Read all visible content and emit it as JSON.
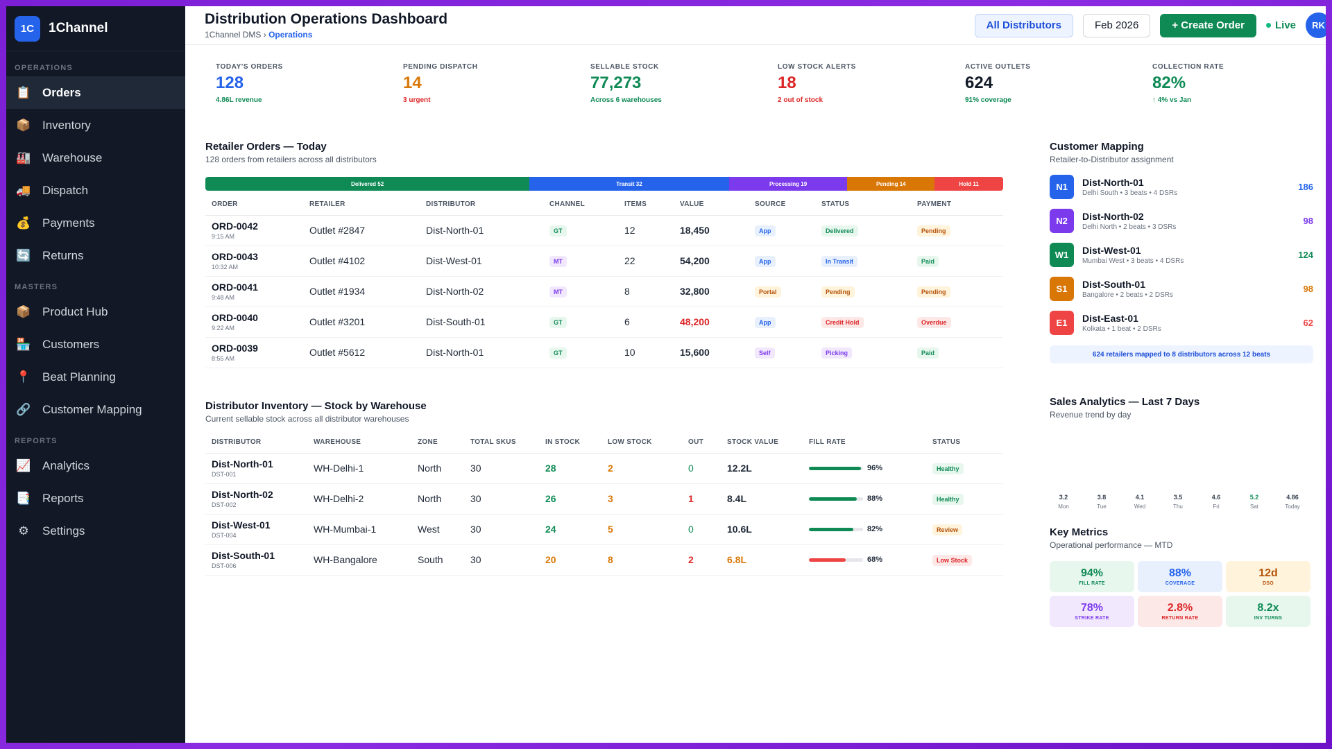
{
  "brand": {
    "logo_text": "1C",
    "name": "1Channel"
  },
  "sidebar": {
    "sections": [
      {
        "title": "OPERATIONS",
        "items": [
          {
            "label": "Orders",
            "icon": "clipboard-icon",
            "glyph": "📋",
            "active": true
          },
          {
            "label": "Inventory",
            "icon": "box-icon",
            "glyph": "📦"
          },
          {
            "label": "Warehouse",
            "icon": "factory-icon",
            "glyph": "🏭"
          },
          {
            "label": "Dispatch",
            "icon": "truck-icon",
            "glyph": "🚚"
          },
          {
            "label": "Payments",
            "icon": "money-bag-icon",
            "glyph": "💰"
          },
          {
            "label": "Returns",
            "icon": "return-icon",
            "glyph": "🔄"
          }
        ]
      },
      {
        "title": "MASTERS",
        "items": [
          {
            "label": "Product Hub",
            "icon": "box-icon",
            "glyph": "📦"
          },
          {
            "label": "Customers",
            "icon": "store-icon",
            "glyph": "🏪"
          },
          {
            "label": "Beat Planning",
            "icon": "pin-icon",
            "glyph": "📍"
          },
          {
            "label": "Customer Mapping",
            "icon": "link-icon",
            "glyph": "🔗"
          }
        ]
      },
      {
        "title": "REPORTS",
        "items": [
          {
            "label": "Analytics",
            "icon": "chart-icon",
            "glyph": "📈"
          },
          {
            "label": "Reports",
            "icon": "report-icon",
            "glyph": "📑"
          },
          {
            "label": "Settings",
            "icon": "gear-icon",
            "glyph": "⚙"
          }
        ]
      }
    ]
  },
  "header": {
    "title": "Distribution Operations Dashboard",
    "breadcrumb_root": "1Channel DMS",
    "breadcrumb_sep": "›",
    "breadcrumb_current": "Operations",
    "distributor_filter": "All Distributors",
    "period": "Feb 2026",
    "create_order": "+ Create Order",
    "live": "Live",
    "user_initials": "RK"
  },
  "kpis": [
    {
      "label": "TODAY'S ORDERS",
      "value": "128",
      "sub": "4.86L revenue",
      "color": "#2563eb",
      "sub_color": "#0f8a55"
    },
    {
      "label": "PENDING DISPATCH",
      "value": "14",
      "sub": "3 urgent",
      "color": "#d97706",
      "sub_color": "#dc2626"
    },
    {
      "label": "SELLABLE STOCK",
      "value": "77,273",
      "sub": "Across 6 warehouses",
      "color": "#0f8a55",
      "sub_color": "#0f8a55"
    },
    {
      "label": "LOW STOCK ALERTS",
      "value": "18",
      "sub": "2 out of stock",
      "color": "#dc2626",
      "sub_color": "#dc2626"
    },
    {
      "label": "ACTIVE OUTLETS",
      "value": "624",
      "sub": "91% coverage",
      "color": "#111827",
      "sub_color": "#0f8a55"
    },
    {
      "label": "COLLECTION RATE",
      "value": "82%",
      "sub": "↑ 4% vs Jan",
      "color": "#0f8a55",
      "sub_color": "#0f8a55"
    }
  ],
  "orders": {
    "title": "Retailer Orders — Today",
    "subtitle": "128 orders from retailers across all distributors",
    "status_bar": [
      {
        "label": "Delivered 52",
        "count": 52,
        "color": "#0f8a55"
      },
      {
        "label": "Transit 32",
        "count": 32,
        "color": "#2563eb"
      },
      {
        "label": "Processing 19",
        "count": 19,
        "color": "#7c3aed"
      },
      {
        "label": "Pending 14",
        "count": 14,
        "color": "#d97706"
      },
      {
        "label": "Hold 11",
        "count": 11,
        "color": "#ef4444"
      }
    ],
    "columns": [
      "ORDER",
      "RETAILER",
      "DISTRIBUTOR",
      "CHANNEL",
      "ITEMS",
      "VALUE",
      "SOURCE",
      "STATUS",
      "PAYMENT"
    ],
    "rows": [
      {
        "id": "ORD-0042",
        "time": "9:15 AM",
        "retailer": "Outlet #2847",
        "distributor": "Dist-North-01",
        "channel": "GT",
        "items": "12",
        "value": "18,450",
        "value_alert": false,
        "source": "App",
        "status": "Delivered",
        "status_tone": "green",
        "payment": "Pending",
        "payment_tone": "amber"
      },
      {
        "id": "ORD-0043",
        "time": "10:32 AM",
        "retailer": "Outlet #4102",
        "distributor": "Dist-West-01",
        "channel": "MT",
        "items": "22",
        "value": "54,200",
        "value_alert": false,
        "source": "App",
        "status": "In Transit",
        "status_tone": "blue",
        "payment": "Paid",
        "payment_tone": "green"
      },
      {
        "id": "ORD-0041",
        "time": "9:48 AM",
        "retailer": "Outlet #1934",
        "distributor": "Dist-North-02",
        "channel": "MT",
        "items": "8",
        "value": "32,800",
        "value_alert": false,
        "source": "Portal",
        "status": "Pending",
        "status_tone": "amber",
        "payment": "Pending",
        "payment_tone": "amber"
      },
      {
        "id": "ORD-0040",
        "time": "9:22 AM",
        "retailer": "Outlet #3201",
        "distributor": "Dist-South-01",
        "channel": "GT",
        "items": "6",
        "value": "48,200",
        "value_alert": true,
        "source": "App",
        "status": "Credit Hold",
        "status_tone": "red",
        "payment": "Overdue",
        "payment_tone": "red"
      },
      {
        "id": "ORD-0039",
        "time": "8:55 AM",
        "retailer": "Outlet #5612",
        "distributor": "Dist-North-01",
        "channel": "GT",
        "items": "10",
        "value": "15,600",
        "value_alert": false,
        "source": "Self",
        "status": "Picking",
        "status_tone": "purple",
        "payment": "Paid",
        "payment_tone": "green"
      }
    ]
  },
  "inventory": {
    "title": "Distributor Inventory — Stock by Warehouse",
    "subtitle": "Current sellable stock across all distributor warehouses",
    "columns": [
      "DISTRIBUTOR",
      "WAREHOUSE",
      "ZONE",
      "TOTAL SKUS",
      "IN STOCK",
      "LOW STOCK",
      "OUT",
      "STOCK VALUE",
      "FILL RATE",
      "STATUS"
    ],
    "rows": [
      {
        "distributor": "Dist-North-01",
        "code": "DST-001",
        "warehouse": "WH-Delhi-1",
        "zone": "North",
        "skus": "30",
        "in_stock": "28",
        "low": "2",
        "out": "0",
        "value": "12.2L",
        "value_alert": false,
        "fill": 96,
        "fill_label": "96%",
        "fill_color": "#0f8a55",
        "status": "Healthy",
        "status_tone": "green"
      },
      {
        "distributor": "Dist-North-02",
        "code": "DST-002",
        "warehouse": "WH-Delhi-2",
        "zone": "North",
        "skus": "30",
        "in_stock": "26",
        "low": "3",
        "out": "1",
        "value": "8.4L",
        "value_alert": false,
        "fill": 88,
        "fill_label": "88%",
        "fill_color": "#0f8a55",
        "status": "Healthy",
        "status_tone": "green"
      },
      {
        "distributor": "Dist-West-01",
        "code": "DST-004",
        "warehouse": "WH-Mumbai-1",
        "zone": "West",
        "skus": "30",
        "in_stock": "24",
        "low": "5",
        "out": "0",
        "value": "10.6L",
        "value_alert": false,
        "fill": 82,
        "fill_label": "82%",
        "fill_color": "#0f8a55",
        "status": "Review",
        "status_tone": "amber"
      },
      {
        "distributor": "Dist-South-01",
        "code": "DST-006",
        "warehouse": "WH-Bangalore",
        "zone": "South",
        "skus": "30",
        "in_stock": "20",
        "low": "8",
        "out": "2",
        "value": "6.8L",
        "value_alert": true,
        "fill": 68,
        "fill_label": "68%",
        "fill_color": "#ef4444",
        "status": "Low Stock",
        "status_tone": "red"
      }
    ]
  },
  "mapping": {
    "title": "Customer Mapping",
    "subtitle": "Retailer-to-Distributor assignment",
    "rows": [
      {
        "badge": "N1",
        "color": "#2563eb",
        "name": "Dist-North-01",
        "meta": "Delhi South • 3 beats • 4 DSRs",
        "count": "186"
      },
      {
        "badge": "N2",
        "color": "#7c3aed",
        "name": "Dist-North-02",
        "meta": "Delhi North • 2 beats • 3 DSRs",
        "count": "98"
      },
      {
        "badge": "W1",
        "color": "#0f8a55",
        "name": "Dist-West-01",
        "meta": "Mumbai West • 3 beats • 4 DSRs",
        "count": "124"
      },
      {
        "badge": "S1",
        "color": "#d97706",
        "name": "Dist-South-01",
        "meta": "Bangalore • 2 beats • 2 DSRs",
        "count": "98"
      },
      {
        "badge": "E1",
        "color": "#ef4444",
        "name": "Dist-East-01",
        "meta": "Kolkata • 1 beat • 2 DSRs",
        "count": "62"
      }
    ],
    "summary": "624 retailers mapped to 8 distributors across 12 beats"
  },
  "sales": {
    "title": "Sales Analytics — Last 7 Days",
    "subtitle": "Revenue trend by day"
  },
  "chart_data": {
    "type": "bar",
    "categories": [
      "Mon",
      "Tue",
      "Wed",
      "Thu",
      "Fri",
      "Sat",
      "Today"
    ],
    "values": [
      3.2,
      3.8,
      4.1,
      3.5,
      4.6,
      5.2,
      4.86
    ],
    "value_labels": [
      "3.2",
      "3.8",
      "4.1",
      "3.5",
      "4.6",
      "5.2",
      "4.86"
    ],
    "label_colors": [
      "#374151",
      "#374151",
      "#374151",
      "#374151",
      "#374151",
      "#0f8a55",
      "#374151"
    ],
    "title": "Sales Analytics — Last 7 Days",
    "subtitle": "Revenue trend by day"
  },
  "metrics": {
    "title": "Key Metrics",
    "subtitle": "Operational performance — MTD",
    "items": [
      {
        "value": "94%",
        "label": "FILL RATE",
        "bg": "#e7f7ee",
        "color": "#0f8a55"
      },
      {
        "value": "88%",
        "label": "COVERAGE",
        "bg": "#e8f0fe",
        "color": "#2563eb"
      },
      {
        "value": "12d",
        "label": "DSO",
        "bg": "#fff3dc",
        "color": "#b45309"
      },
      {
        "value": "78%",
        "label": "STRIKE RATE",
        "bg": "#f1e8fd",
        "color": "#7c3aed"
      },
      {
        "value": "2.8%",
        "label": "RETURN RATE",
        "bg": "#fde8e8",
        "color": "#dc2626"
      },
      {
        "value": "8.2x",
        "label": "INV TURNS",
        "bg": "#e7f7ee",
        "color": "#0f8a55"
      }
    ]
  }
}
